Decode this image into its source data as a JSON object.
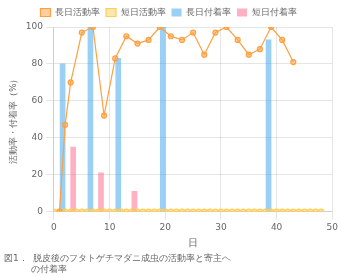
{
  "chart_data": {
    "type": "bar",
    "title": [
      "図1．  脱皮後のフタトゲチマダニ成虫の活動率と寄主へ",
      "　　　の付着率"
    ],
    "xlabel": "日",
    "ylabel": "活動率・付着率（%）",
    "xlim": [
      0,
      50
    ],
    "ylim": [
      0,
      100
    ],
    "xticks": [
      0,
      10,
      20,
      30,
      40,
      50
    ],
    "yticks": [
      0,
      20,
      40,
      60,
      80,
      100
    ],
    "grid": true,
    "legend": "top",
    "series": [
      {
        "name": "長日付着率",
        "type": "bar",
        "x": [
          2,
          7,
          12,
          20,
          39
        ],
        "values": [
          80,
          100,
          83,
          100,
          93
        ]
      },
      {
        "name": "短日付着率",
        "type": "bar",
        "x": [
          3,
          8,
          14
        ],
        "values": [
          35,
          21,
          11
        ]
      },
      {
        "name": "長日活動率",
        "type": "line",
        "marker": "circle",
        "x": [
          1,
          2,
          3,
          5,
          7,
          9,
          11,
          13,
          15,
          17,
          19,
          21,
          23,
          25,
          27,
          29,
          31,
          33,
          35,
          37,
          39,
          41,
          43
        ],
        "values": [
          0,
          47,
          70,
          97,
          100,
          52,
          83,
          95,
          91,
          93,
          100,
          95,
          93,
          97,
          85,
          97,
          100,
          93,
          85,
          88,
          100,
          93,
          81
        ]
      },
      {
        "name": "短日活動率",
        "type": "line",
        "marker": "circle",
        "x": [
          0,
          1,
          2,
          3,
          4,
          5,
          6,
          7,
          8,
          9,
          10,
          11,
          12,
          13,
          14,
          15,
          16,
          17,
          18,
          19,
          20,
          21,
          22,
          23,
          24,
          25,
          26,
          27,
          28,
          29,
          30,
          31,
          32,
          33,
          34,
          35,
          36,
          37,
          38,
          39,
          40,
          41,
          42,
          43,
          44,
          45,
          46,
          47,
          48
        ],
        "values": [
          0,
          0,
          0,
          0,
          0,
          0,
          0,
          0,
          0,
          0,
          0,
          0,
          0,
          0,
          0,
          0,
          0,
          0,
          0,
          0,
          0,
          0,
          0,
          0,
          0,
          0,
          0,
          0,
          0,
          0,
          0,
          0,
          0,
          0,
          0,
          0,
          0,
          0,
          0,
          0,
          0,
          0,
          0,
          0,
          0,
          0,
          0,
          0,
          0
        ]
      }
    ]
  }
}
